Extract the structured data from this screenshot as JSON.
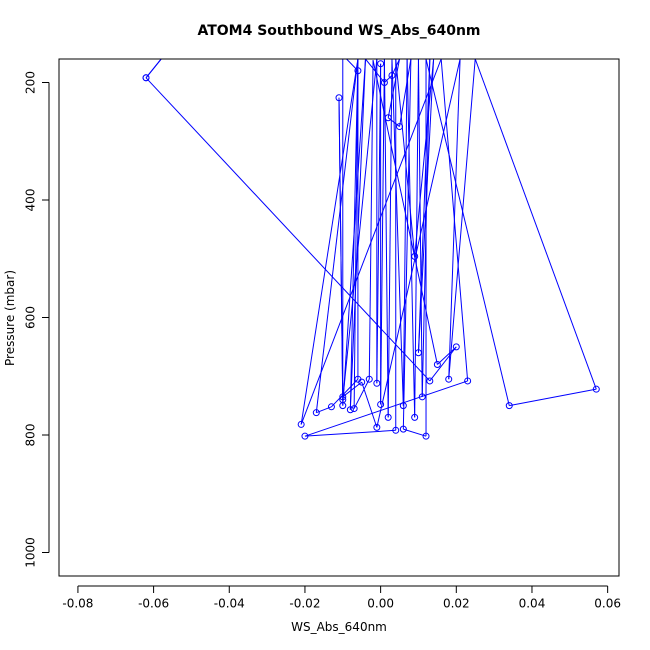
{
  "chart_data": {
    "type": "line",
    "title": "ATOM4 Southbound WS_Abs_640nm",
    "xlabel": "WS_Abs_640nm",
    "ylabel": "Pressure (mbar)",
    "xlim": [
      -0.085,
      0.063
    ],
    "ylim": [
      1040,
      160
    ],
    "y_reversed": true,
    "xticks": [
      -0.08,
      -0.06,
      -0.04,
      -0.02,
      0.0,
      0.02,
      0.04,
      0.06
    ],
    "xtick_labels": [
      "-0.08",
      "-0.06",
      "-0.04",
      "-0.02",
      "0.00",
      "0.02",
      "0.04",
      "0.06"
    ],
    "yticks": [
      200,
      400,
      600,
      800,
      1000
    ],
    "ytick_labels": [
      "200",
      "400",
      "600",
      "800",
      "1000"
    ],
    "grid": false,
    "series": [
      {
        "color": "#0000ff",
        "marker": "open-circle",
        "points": [
          {
            "x": -0.062,
            "y": 192,
            "marker": true
          },
          {
            "x": -0.058,
            "y": 160,
            "marker": false
          },
          {
            "x": -0.062,
            "y": 192,
            "marker": true
          },
          {
            "x": 0.013,
            "y": 708,
            "marker": true
          },
          {
            "x": 0.02,
            "y": 650,
            "marker": true
          },
          {
            "x": 0.015,
            "y": 680,
            "marker": true
          },
          {
            "x": -0.002,
            "y": 162,
            "marker": false
          },
          {
            "x": -0.003,
            "y": 705,
            "marker": true
          },
          {
            "x": -0.007,
            "y": 755,
            "marker": true
          },
          {
            "x": -0.006,
            "y": 160,
            "marker": false
          },
          {
            "x": -0.008,
            "y": 757,
            "marker": true
          },
          {
            "x": -0.004,
            "y": 160,
            "marker": false
          },
          {
            "x": -0.01,
            "y": 750,
            "marker": true
          },
          {
            "x": -0.011,
            "y": 226,
            "marker": true
          },
          {
            "x": -0.01,
            "y": 740,
            "marker": true
          },
          {
            "x": -0.001,
            "y": 160,
            "marker": false
          },
          {
            "x": -0.001,
            "y": 712,
            "marker": true
          },
          {
            "x": 0.0,
            "y": 168,
            "marker": true
          },
          {
            "x": 0.0,
            "y": 748,
            "marker": true
          },
          {
            "x": 0.001,
            "y": 160,
            "marker": false
          },
          {
            "x": 0.002,
            "y": 770,
            "marker": true
          },
          {
            "x": 0.003,
            "y": 160,
            "marker": false
          },
          {
            "x": 0.006,
            "y": 750,
            "marker": true
          },
          {
            "x": 0.007,
            "y": 160,
            "marker": false
          },
          {
            "x": 0.009,
            "y": 770,
            "marker": true
          },
          {
            "x": 0.01,
            "y": 160,
            "marker": false
          },
          {
            "x": 0.011,
            "y": 735,
            "marker": true
          },
          {
            "x": 0.013,
            "y": 160,
            "marker": false
          },
          {
            "x": 0.01,
            "y": 660,
            "marker": true
          },
          {
            "x": 0.014,
            "y": 160,
            "marker": false
          },
          {
            "x": 0.009,
            "y": 496,
            "marker": true
          },
          {
            "x": 0.004,
            "y": 160,
            "marker": false
          },
          {
            "x": 0.004,
            "y": 792,
            "marker": true
          },
          {
            "x": -0.02,
            "y": 802,
            "marker": true
          },
          {
            "x": 0.023,
            "y": 708,
            "marker": true
          },
          {
            "x": 0.016,
            "y": 160,
            "marker": false
          },
          {
            "x": -0.021,
            "y": 782,
            "marker": true
          },
          {
            "x": -0.006,
            "y": 160,
            "marker": false
          },
          {
            "x": -0.017,
            "y": 762,
            "marker": true
          },
          {
            "x": -0.013,
            "y": 752,
            "marker": true
          },
          {
            "x": -0.006,
            "y": 705,
            "marker": true
          },
          {
            "x": -0.006,
            "y": 180,
            "marker": true
          },
          {
            "x": -0.009,
            "y": 160,
            "marker": false
          },
          {
            "x": -0.004,
            "y": 160,
            "marker": false
          },
          {
            "x": 0.001,
            "y": 200,
            "marker": true
          },
          {
            "x": 0.003,
            "y": 188,
            "marker": true
          },
          {
            "x": 0.005,
            "y": 160,
            "marker": false
          },
          {
            "x": 0.002,
            "y": 260,
            "marker": true
          },
          {
            "x": 0.005,
            "y": 275,
            "marker": true
          },
          {
            "x": 0.008,
            "y": 160,
            "marker": false
          },
          {
            "x": 0.006,
            "y": 790,
            "marker": true
          },
          {
            "x": 0.012,
            "y": 802,
            "marker": true
          },
          {
            "x": 0.012,
            "y": 160,
            "marker": false
          },
          {
            "x": 0.034,
            "y": 750,
            "marker": true
          },
          {
            "x": 0.057,
            "y": 722,
            "marker": true
          },
          {
            "x": 0.025,
            "y": 160,
            "marker": false
          },
          {
            "x": 0.018,
            "y": 705,
            "marker": true
          },
          {
            "x": 0.021,
            "y": 160,
            "marker": false
          },
          {
            "x": -0.001,
            "y": 787,
            "marker": true
          },
          {
            "x": -0.005,
            "y": 710,
            "marker": true
          },
          {
            "x": -0.01,
            "y": 735,
            "marker": true
          },
          {
            "x": -0.01,
            "y": 160,
            "marker": false
          },
          {
            "x": -0.02,
            "y": 160,
            "marker": false
          },
          {
            "x": -0.03,
            "y": 160,
            "marker": false
          }
        ]
      }
    ]
  }
}
